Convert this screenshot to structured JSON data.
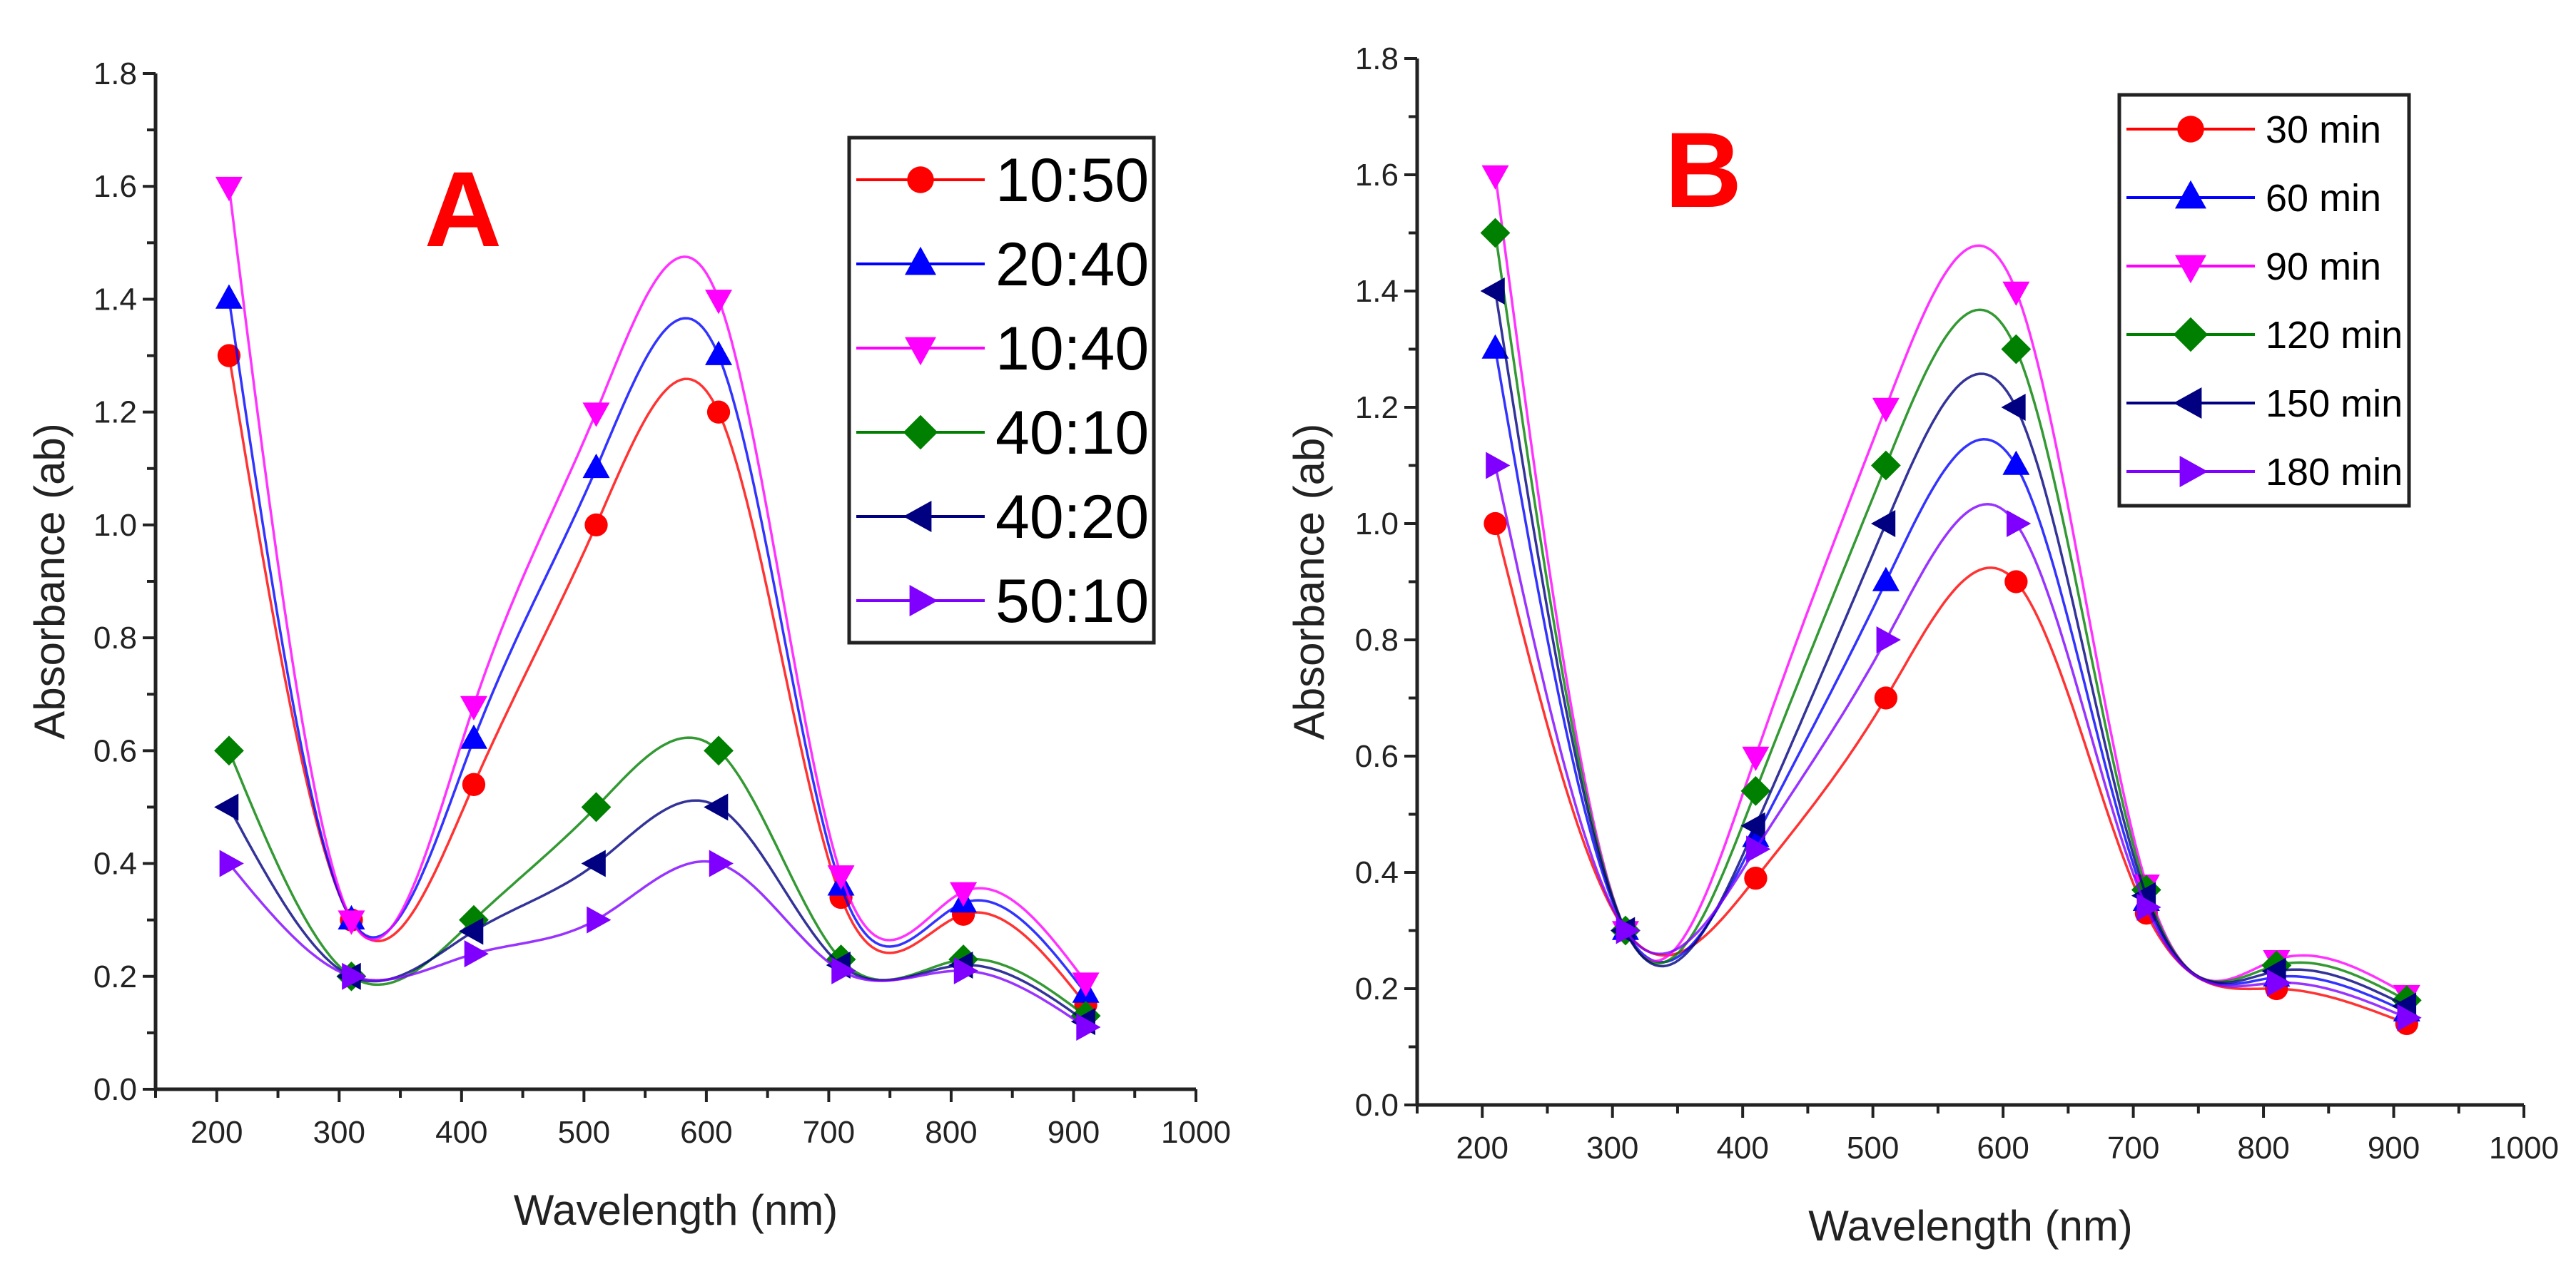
{
  "chart_data": [
    {
      "type": "line",
      "panel_label": "A",
      "xlabel": "Wavelength (nm)",
      "ylabel": "Absorbance (ab)",
      "xlim": [
        150,
        1000
      ],
      "ylim": [
        0,
        1.8
      ],
      "xticks": [
        200,
        300,
        400,
        500,
        600,
        700,
        800,
        900,
        1000
      ],
      "yticks": [
        "0.0",
        "0.2",
        "0.4",
        "0.6",
        "0.8",
        "1.0",
        "1.2",
        "1.4",
        "1.6",
        "1.8"
      ],
      "legend_position": "top-right",
      "x": [
        210,
        310,
        410,
        510,
        610,
        710,
        810,
        910
      ],
      "series": [
        {
          "name": "10:50",
          "color": "#ff0000",
          "marker": "circle",
          "values": [
            1.3,
            0.3,
            0.54,
            1.0,
            1.2,
            0.34,
            0.31,
            0.15
          ]
        },
        {
          "name": "20:40",
          "color": "#0000ff",
          "marker": "triangle-up",
          "values": [
            1.4,
            0.3,
            0.62,
            1.1,
            1.3,
            0.36,
            0.33,
            0.17
          ]
        },
        {
          "name": "10:40",
          "color": "#ff00ff",
          "marker": "triangle-down",
          "values": [
            1.6,
            0.3,
            0.68,
            1.2,
            1.4,
            0.38,
            0.35,
            0.19
          ]
        },
        {
          "name": "40:10",
          "color": "#008000",
          "marker": "diamond",
          "values": [
            0.6,
            0.2,
            0.3,
            0.5,
            0.6,
            0.23,
            0.23,
            0.13
          ]
        },
        {
          "name": "40:20",
          "color": "#000080",
          "marker": "triangle-left",
          "values": [
            0.5,
            0.2,
            0.28,
            0.4,
            0.5,
            0.22,
            0.22,
            0.12
          ]
        },
        {
          "name": "50:10",
          "color": "#8000ff",
          "marker": "triangle-right",
          "values": [
            0.4,
            0.2,
            0.24,
            0.3,
            0.4,
            0.21,
            0.21,
            0.11
          ]
        }
      ]
    },
    {
      "type": "line",
      "panel_label": "B",
      "xlabel": "Wavelength (nm)",
      "ylabel": "Absorbance (ab)",
      "xlim": [
        150,
        1000
      ],
      "ylim": [
        0,
        1.8
      ],
      "xticks": [
        200,
        300,
        400,
        500,
        600,
        700,
        800,
        900,
        1000
      ],
      "yticks": [
        "0.0",
        "0.2",
        "0.4",
        "0.6",
        "0.8",
        "1.0",
        "1.2",
        "1.4",
        "1.6",
        "1.8"
      ],
      "legend_position": "top-right",
      "x": [
        210,
        310,
        410,
        510,
        610,
        710,
        810,
        910
      ],
      "series": [
        {
          "name": "30 min",
          "color": "#ff0000",
          "marker": "circle",
          "values": [
            1.0,
            0.3,
            0.39,
            0.7,
            0.9,
            0.33,
            0.2,
            0.14
          ]
        },
        {
          "name": "60 min",
          "color": "#0000ff",
          "marker": "triangle-up",
          "values": [
            1.3,
            0.3,
            0.46,
            0.9,
            1.1,
            0.35,
            0.22,
            0.16
          ]
        },
        {
          "name": "90 min",
          "color": "#ff00ff",
          "marker": "triangle-down",
          "values": [
            1.6,
            0.3,
            0.6,
            1.2,
            1.4,
            0.38,
            0.25,
            0.19
          ]
        },
        {
          "name": "120 min",
          "color": "#008000",
          "marker": "diamond",
          "values": [
            1.5,
            0.3,
            0.54,
            1.1,
            1.3,
            0.37,
            0.24,
            0.18
          ]
        },
        {
          "name": "150 min",
          "color": "#000080",
          "marker": "triangle-left",
          "values": [
            1.4,
            0.3,
            0.48,
            1.0,
            1.2,
            0.36,
            0.23,
            0.17
          ]
        },
        {
          "name": "180 min",
          "color": "#8000ff",
          "marker": "triangle-right",
          "values": [
            1.1,
            0.3,
            0.44,
            0.8,
            1.0,
            0.34,
            0.21,
            0.15
          ]
        }
      ]
    }
  ]
}
